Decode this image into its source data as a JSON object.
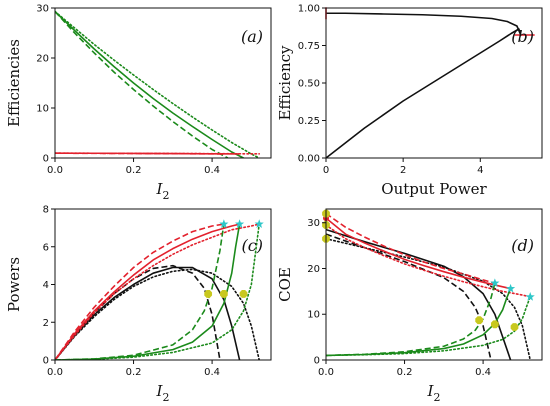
{
  "colors": {
    "black": "#111111",
    "green": "#1b8a1b",
    "red": "#e3212d",
    "cyan": "#2fc7c9",
    "olive": "#c8c81e"
  },
  "chart_data": [
    {
      "id": "a",
      "type": "line",
      "panel_label": "(a)",
      "xlabel": "I",
      "xlabel_sub": "2",
      "ylabel": "Efficiencies",
      "xlim": [
        0,
        0.55
      ],
      "ylim": [
        0,
        30
      ],
      "xticks": [
        0,
        0.2,
        0.4
      ],
      "xtick_labels": [
        "0.0",
        "0.2",
        "0.4"
      ],
      "yticks": [
        0,
        10,
        20,
        30
      ],
      "ytick_labels": [
        "0",
        "10",
        "20",
        "30"
      ],
      "series": [
        {
          "color": "green",
          "dash": "solid",
          "x": [
            0,
            0.05,
            0.1,
            0.15,
            0.2,
            0.25,
            0.3,
            0.35,
            0.4,
            0.45,
            0.48
          ],
          "y": [
            29.3,
            25.5,
            21.8,
            18.3,
            15.0,
            11.9,
            9.0,
            6.3,
            3.7,
            1.2,
            0
          ]
        },
        {
          "color": "green",
          "dash": "dashed",
          "x": [
            0,
            0.05,
            0.1,
            0.15,
            0.2,
            0.25,
            0.3,
            0.35,
            0.4,
            0.44
          ],
          "y": [
            29.3,
            25.0,
            21.0,
            17.2,
            13.7,
            10.4,
            7.3,
            4.4,
            1.7,
            0
          ]
        },
        {
          "color": "green",
          "dash": "dotted",
          "x": [
            0,
            0.05,
            0.1,
            0.15,
            0.2,
            0.25,
            0.3,
            0.35,
            0.4,
            0.45,
            0.5,
            0.52
          ],
          "y": [
            29.3,
            26.0,
            22.7,
            19.6,
            16.6,
            13.7,
            10.9,
            8.2,
            5.6,
            3.1,
            0.8,
            0
          ]
        },
        {
          "color": "red",
          "dash": "solid",
          "x": [
            0,
            0.1,
            0.2,
            0.3,
            0.4,
            0.47
          ],
          "y": [
            0.97,
            0.95,
            0.92,
            0.88,
            0.84,
            0.82
          ]
        },
        {
          "color": "red",
          "dash": "dashed",
          "x": [
            0,
            0.1,
            0.2,
            0.3,
            0.4,
            0.43
          ],
          "y": [
            0.96,
            0.93,
            0.9,
            0.86,
            0.83,
            0.8
          ]
        },
        {
          "color": "red",
          "dash": "dotted",
          "x": [
            0,
            0.1,
            0.2,
            0.3,
            0.4,
            0.5,
            0.52
          ],
          "y": [
            0.97,
            0.95,
            0.93,
            0.9,
            0.87,
            0.84,
            0.83
          ]
        }
      ]
    },
    {
      "id": "b",
      "type": "line",
      "panel_label": "(b)",
      "xlabel": "Output Power",
      "ylabel": "Efficiency",
      "xlim": [
        0,
        5.6
      ],
      "ylim": [
        0,
        1.0
      ],
      "xticks": [
        0,
        2,
        4
      ],
      "xtick_labels": [
        "0",
        "2",
        "4"
      ],
      "yticks": [
        0,
        0.25,
        0.5,
        0.75,
        1.0
      ],
      "ytick_labels": [
        "0.00",
        "0.25",
        "0.50",
        "0.75",
        "1.00"
      ],
      "series": [
        {
          "color": "black",
          "dash": "solid",
          "x": [
            0,
            1,
            2,
            3,
            4,
            4.5,
            4.8,
            5.0,
            5.05,
            4.95,
            4.7,
            4.3,
            3.5,
            2.5,
            1.5,
            0.5,
            0
          ],
          "y": [
            0,
            0.2,
            0.38,
            0.54,
            0.7,
            0.78,
            0.83,
            0.86,
            0.82,
            0.88,
            0.91,
            0.93,
            0.945,
            0.955,
            0.96,
            0.965,
            0.965
          ]
        }
      ],
      "markers": [
        {
          "color": "red",
          "shape": "hline",
          "x": 5.15,
          "y": 0.82
        },
        {
          "color": "red",
          "shape": "vline",
          "x": 0,
          "y": 0.965
        }
      ]
    },
    {
      "id": "c",
      "type": "line",
      "panel_label": "(c)",
      "xlabel": "I",
      "xlabel_sub": "2",
      "ylabel": "Powers",
      "xlim": [
        0,
        0.55
      ],
      "ylim": [
        0,
        8
      ],
      "xticks": [
        0,
        0.2,
        0.4
      ],
      "xtick_labels": [
        "0.0",
        "0.2",
        "0.4"
      ],
      "yticks": [
        0,
        2,
        4,
        6,
        8
      ],
      "ytick_labels": [
        "0",
        "2",
        "4",
        "6",
        "8"
      ],
      "series": [
        {
          "color": "black",
          "dash": "solid",
          "x": [
            0,
            0.05,
            0.1,
            0.15,
            0.2,
            0.25,
            0.3,
            0.35,
            0.4,
            0.43,
            0.45,
            0.47
          ],
          "y": [
            0,
            1.3,
            2.4,
            3.3,
            4.0,
            4.6,
            4.9,
            4.9,
            4.3,
            3.2,
            1.8,
            0
          ]
        },
        {
          "color": "black",
          "dash": "dashed",
          "x": [
            0,
            0.05,
            0.1,
            0.15,
            0.2,
            0.25,
            0.3,
            0.35,
            0.38,
            0.4,
            0.42
          ],
          "y": [
            0,
            1.35,
            2.5,
            3.5,
            4.3,
            4.85,
            5.0,
            4.6,
            3.8,
            2.4,
            0
          ]
        },
        {
          "color": "black",
          "dash": "dotted",
          "x": [
            0,
            0.05,
            0.1,
            0.15,
            0.2,
            0.25,
            0.3,
            0.35,
            0.4,
            0.45,
            0.48,
            0.5,
            0.52
          ],
          "y": [
            0,
            1.25,
            2.3,
            3.2,
            3.9,
            4.4,
            4.7,
            4.8,
            4.6,
            3.9,
            3.0,
            1.8,
            0
          ]
        },
        {
          "color": "red",
          "dash": "solid",
          "x": [
            0,
            0.05,
            0.1,
            0.15,
            0.2,
            0.25,
            0.3,
            0.35,
            0.4,
            0.45,
            0.47
          ],
          "y": [
            0,
            1.4,
            2.6,
            3.6,
            4.5,
            5.3,
            5.9,
            6.4,
            6.8,
            7.1,
            7.2
          ]
        },
        {
          "color": "red",
          "dash": "dashed",
          "x": [
            0,
            0.05,
            0.1,
            0.15,
            0.2,
            0.25,
            0.3,
            0.35,
            0.4,
            0.43
          ],
          "y": [
            0,
            1.5,
            2.8,
            3.9,
            4.9,
            5.7,
            6.3,
            6.8,
            7.1,
            7.2
          ]
        },
        {
          "color": "red",
          "dash": "dotted",
          "x": [
            0,
            0.05,
            0.1,
            0.15,
            0.2,
            0.25,
            0.3,
            0.35,
            0.4,
            0.45,
            0.5,
            0.52
          ],
          "y": [
            0,
            1.3,
            2.5,
            3.5,
            4.3,
            5.0,
            5.6,
            6.1,
            6.5,
            6.9,
            7.1,
            7.2
          ]
        },
        {
          "color": "green",
          "dash": "solid",
          "x": [
            0,
            0.1,
            0.2,
            0.3,
            0.35,
            0.4,
            0.43,
            0.45,
            0.46,
            0.47
          ],
          "y": [
            0,
            0.05,
            0.2,
            0.55,
            0.95,
            1.8,
            3.0,
            4.6,
            6.0,
            7.2
          ]
        },
        {
          "color": "green",
          "dash": "dashed",
          "x": [
            0,
            0.1,
            0.2,
            0.3,
            0.35,
            0.38,
            0.4,
            0.42,
            0.43
          ],
          "y": [
            0,
            0.06,
            0.25,
            0.8,
            1.6,
            2.6,
            3.8,
            5.8,
            7.2
          ]
        },
        {
          "color": "green",
          "dash": "dotted",
          "x": [
            0,
            0.1,
            0.2,
            0.3,
            0.4,
            0.45,
            0.48,
            0.5,
            0.51,
            0.52
          ],
          "y": [
            0,
            0.04,
            0.15,
            0.4,
            0.9,
            1.6,
            2.6,
            4.0,
            5.6,
            7.2
          ]
        }
      ],
      "markers": [
        {
          "color": "cyan",
          "shape": "star",
          "x": 0.43,
          "y": 7.2
        },
        {
          "color": "cyan",
          "shape": "star",
          "x": 0.47,
          "y": 7.2
        },
        {
          "color": "cyan",
          "shape": "star",
          "x": 0.52,
          "y": 7.2
        },
        {
          "color": "olive",
          "shape": "octagon",
          "x": 0.39,
          "y": 3.5
        },
        {
          "color": "olive",
          "shape": "octagon",
          "x": 0.43,
          "y": 3.5
        },
        {
          "color": "olive",
          "shape": "octagon",
          "x": 0.48,
          "y": 3.5
        }
      ]
    },
    {
      "id": "d",
      "type": "line",
      "panel_label": "(d)",
      "xlabel": "I",
      "xlabel_sub": "2",
      "ylabel": "COE",
      "xlim": [
        0,
        0.55
      ],
      "ylim": [
        0,
        33
      ],
      "xticks": [
        0,
        0.2,
        0.4
      ],
      "xtick_labels": [
        "0.0",
        "0.2",
        "0.4"
      ],
      "yticks": [
        0,
        10,
        20,
        30
      ],
      "ytick_labels": [
        "0",
        "10",
        "20",
        "30"
      ],
      "series": [
        {
          "color": "black",
          "dash": "solid",
          "x": [
            0,
            0.1,
            0.2,
            0.3,
            0.35,
            0.4,
            0.43,
            0.45,
            0.47
          ],
          "y": [
            28.5,
            25.8,
            23.3,
            20.5,
            18.2,
            14.5,
            10.0,
            5.0,
            0
          ]
        },
        {
          "color": "black",
          "dash": "dashed",
          "x": [
            0,
            0.1,
            0.2,
            0.3,
            0.35,
            0.38,
            0.4,
            0.42
          ],
          "y": [
            27.5,
            24.5,
            21.5,
            18.0,
            15.0,
            11.5,
            7.5,
            0
          ]
        },
        {
          "color": "black",
          "dash": "dotted",
          "x": [
            0,
            0.1,
            0.2,
            0.3,
            0.4,
            0.45,
            0.48,
            0.5,
            0.52
          ],
          "y": [
            26.5,
            24.5,
            22.5,
            20.3,
            17.2,
            14.5,
            11.5,
            7.5,
            0
          ]
        },
        {
          "color": "red",
          "dash": "solid",
          "x": [
            0,
            0.05,
            0.1,
            0.15,
            0.2,
            0.25,
            0.3,
            0.35,
            0.4,
            0.45,
            0.47
          ],
          "y": [
            31.0,
            27.5,
            25.5,
            23.7,
            22.0,
            20.6,
            19.3,
            18.1,
            17.0,
            16.0,
            15.6
          ]
        },
        {
          "color": "red",
          "dash": "dashed",
          "x": [
            0,
            0.05,
            0.1,
            0.15,
            0.2,
            0.25,
            0.3,
            0.35,
            0.4,
            0.43
          ],
          "y": [
            32.0,
            29.0,
            26.8,
            24.8,
            23.0,
            21.4,
            20.0,
            18.8,
            17.5,
            16.8
          ]
        },
        {
          "color": "red",
          "dash": "dotted",
          "x": [
            0,
            0.05,
            0.1,
            0.15,
            0.2,
            0.25,
            0.3,
            0.35,
            0.4,
            0.45,
            0.5,
            0.52
          ],
          "y": [
            29.5,
            26.5,
            24.5,
            22.7,
            21.0,
            19.6,
            18.3,
            17.1,
            16.0,
            15.0,
            14.2,
            13.8
          ]
        },
        {
          "color": "green",
          "dash": "solid",
          "x": [
            0,
            0.1,
            0.2,
            0.3,
            0.35,
            0.4,
            0.43,
            0.45,
            0.46,
            0.47
          ],
          "y": [
            1.0,
            1.2,
            1.6,
            2.5,
            3.5,
            5.5,
            8.0,
            11.0,
            13.5,
            15.6
          ]
        },
        {
          "color": "green",
          "dash": "dashed",
          "x": [
            0,
            0.1,
            0.2,
            0.3,
            0.35,
            0.38,
            0.4,
            0.42,
            0.43
          ],
          "y": [
            1.0,
            1.25,
            1.8,
            3.0,
            4.6,
            6.5,
            9.0,
            13.5,
            16.8
          ]
        },
        {
          "color": "green",
          "dash": "dotted",
          "x": [
            0,
            0.1,
            0.2,
            0.3,
            0.4,
            0.45,
            0.48,
            0.5,
            0.51,
            0.52
          ],
          "y": [
            1.0,
            1.15,
            1.4,
            2.0,
            3.2,
            4.5,
            6.3,
            9.0,
            11.5,
            13.8
          ]
        }
      ],
      "markers": [
        {
          "color": "red",
          "shape": "circle",
          "x": 0,
          "y": 31.0
        },
        {
          "color": "olive",
          "shape": "octagon",
          "x": 0,
          "y": 32.0
        },
        {
          "color": "olive",
          "shape": "octagon",
          "x": 0,
          "y": 29.5
        },
        {
          "color": "olive",
          "shape": "octagon",
          "x": 0,
          "y": 26.5
        },
        {
          "color": "cyan",
          "shape": "star",
          "x": 0.43,
          "y": 16.8
        },
        {
          "color": "cyan",
          "shape": "star",
          "x": 0.47,
          "y": 15.6
        },
        {
          "color": "cyan",
          "shape": "star",
          "x": 0.52,
          "y": 13.8
        },
        {
          "color": "olive",
          "shape": "octagon",
          "x": 0.39,
          "y": 8.7
        },
        {
          "color": "olive",
          "shape": "octagon",
          "x": 0.43,
          "y": 7.8
        },
        {
          "color": "olive",
          "shape": "octagon",
          "x": 0.48,
          "y": 7.2
        }
      ]
    }
  ]
}
